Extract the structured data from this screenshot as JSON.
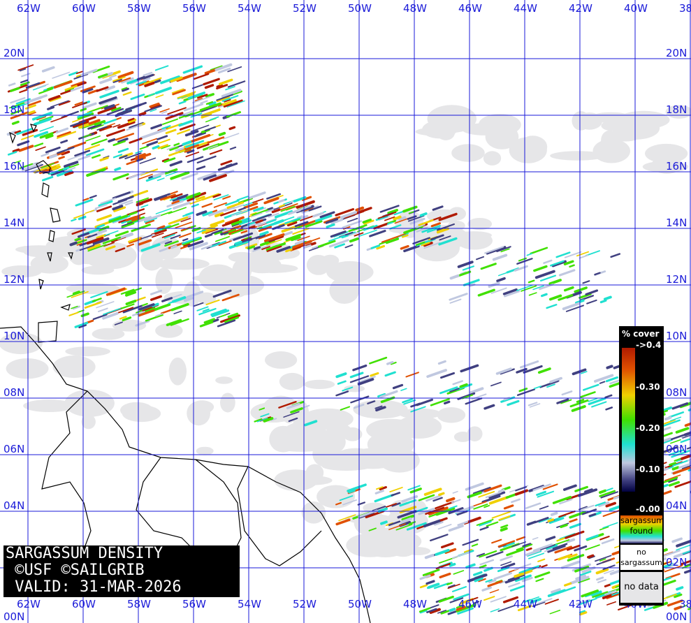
{
  "title": {
    "line1": "SARGASSUM DENSITY",
    "line2": " ©USF ©SAILGRIB",
    "line3": " VALID: 31-MAR-2026"
  },
  "legend": {
    "header": "% cover",
    "ticks": [
      "->0.4",
      "-0.30",
      "-0.20",
      "-0.10",
      "-0.00"
    ],
    "found_label_1": "sargassum",
    "found_label_2": "found",
    "no_sargassum_1": "no",
    "no_sargassum_2": "sargassum",
    "no_data": "no data"
  },
  "longitude_labels": [
    "62W",
    "60W",
    "58W",
    "56W",
    "54W",
    "52W",
    "50W",
    "48W",
    "46W",
    "44W",
    "42W",
    "40W",
    "38"
  ],
  "latitude_labels": [
    "20N",
    "18N",
    "16N",
    "14N",
    "12N",
    "10N",
    "08N",
    "06N",
    "04N",
    "02N",
    "00N"
  ],
  "colors": {
    "grid": "#1a1ad8",
    "no_data": "#e6e6e8",
    "coast": "#000000",
    "scale": [
      "#b01a00",
      "#e05000",
      "#f0d000",
      "#40e000",
      "#20e0d0",
      "#c0c8e0",
      "#404080"
    ]
  }
}
